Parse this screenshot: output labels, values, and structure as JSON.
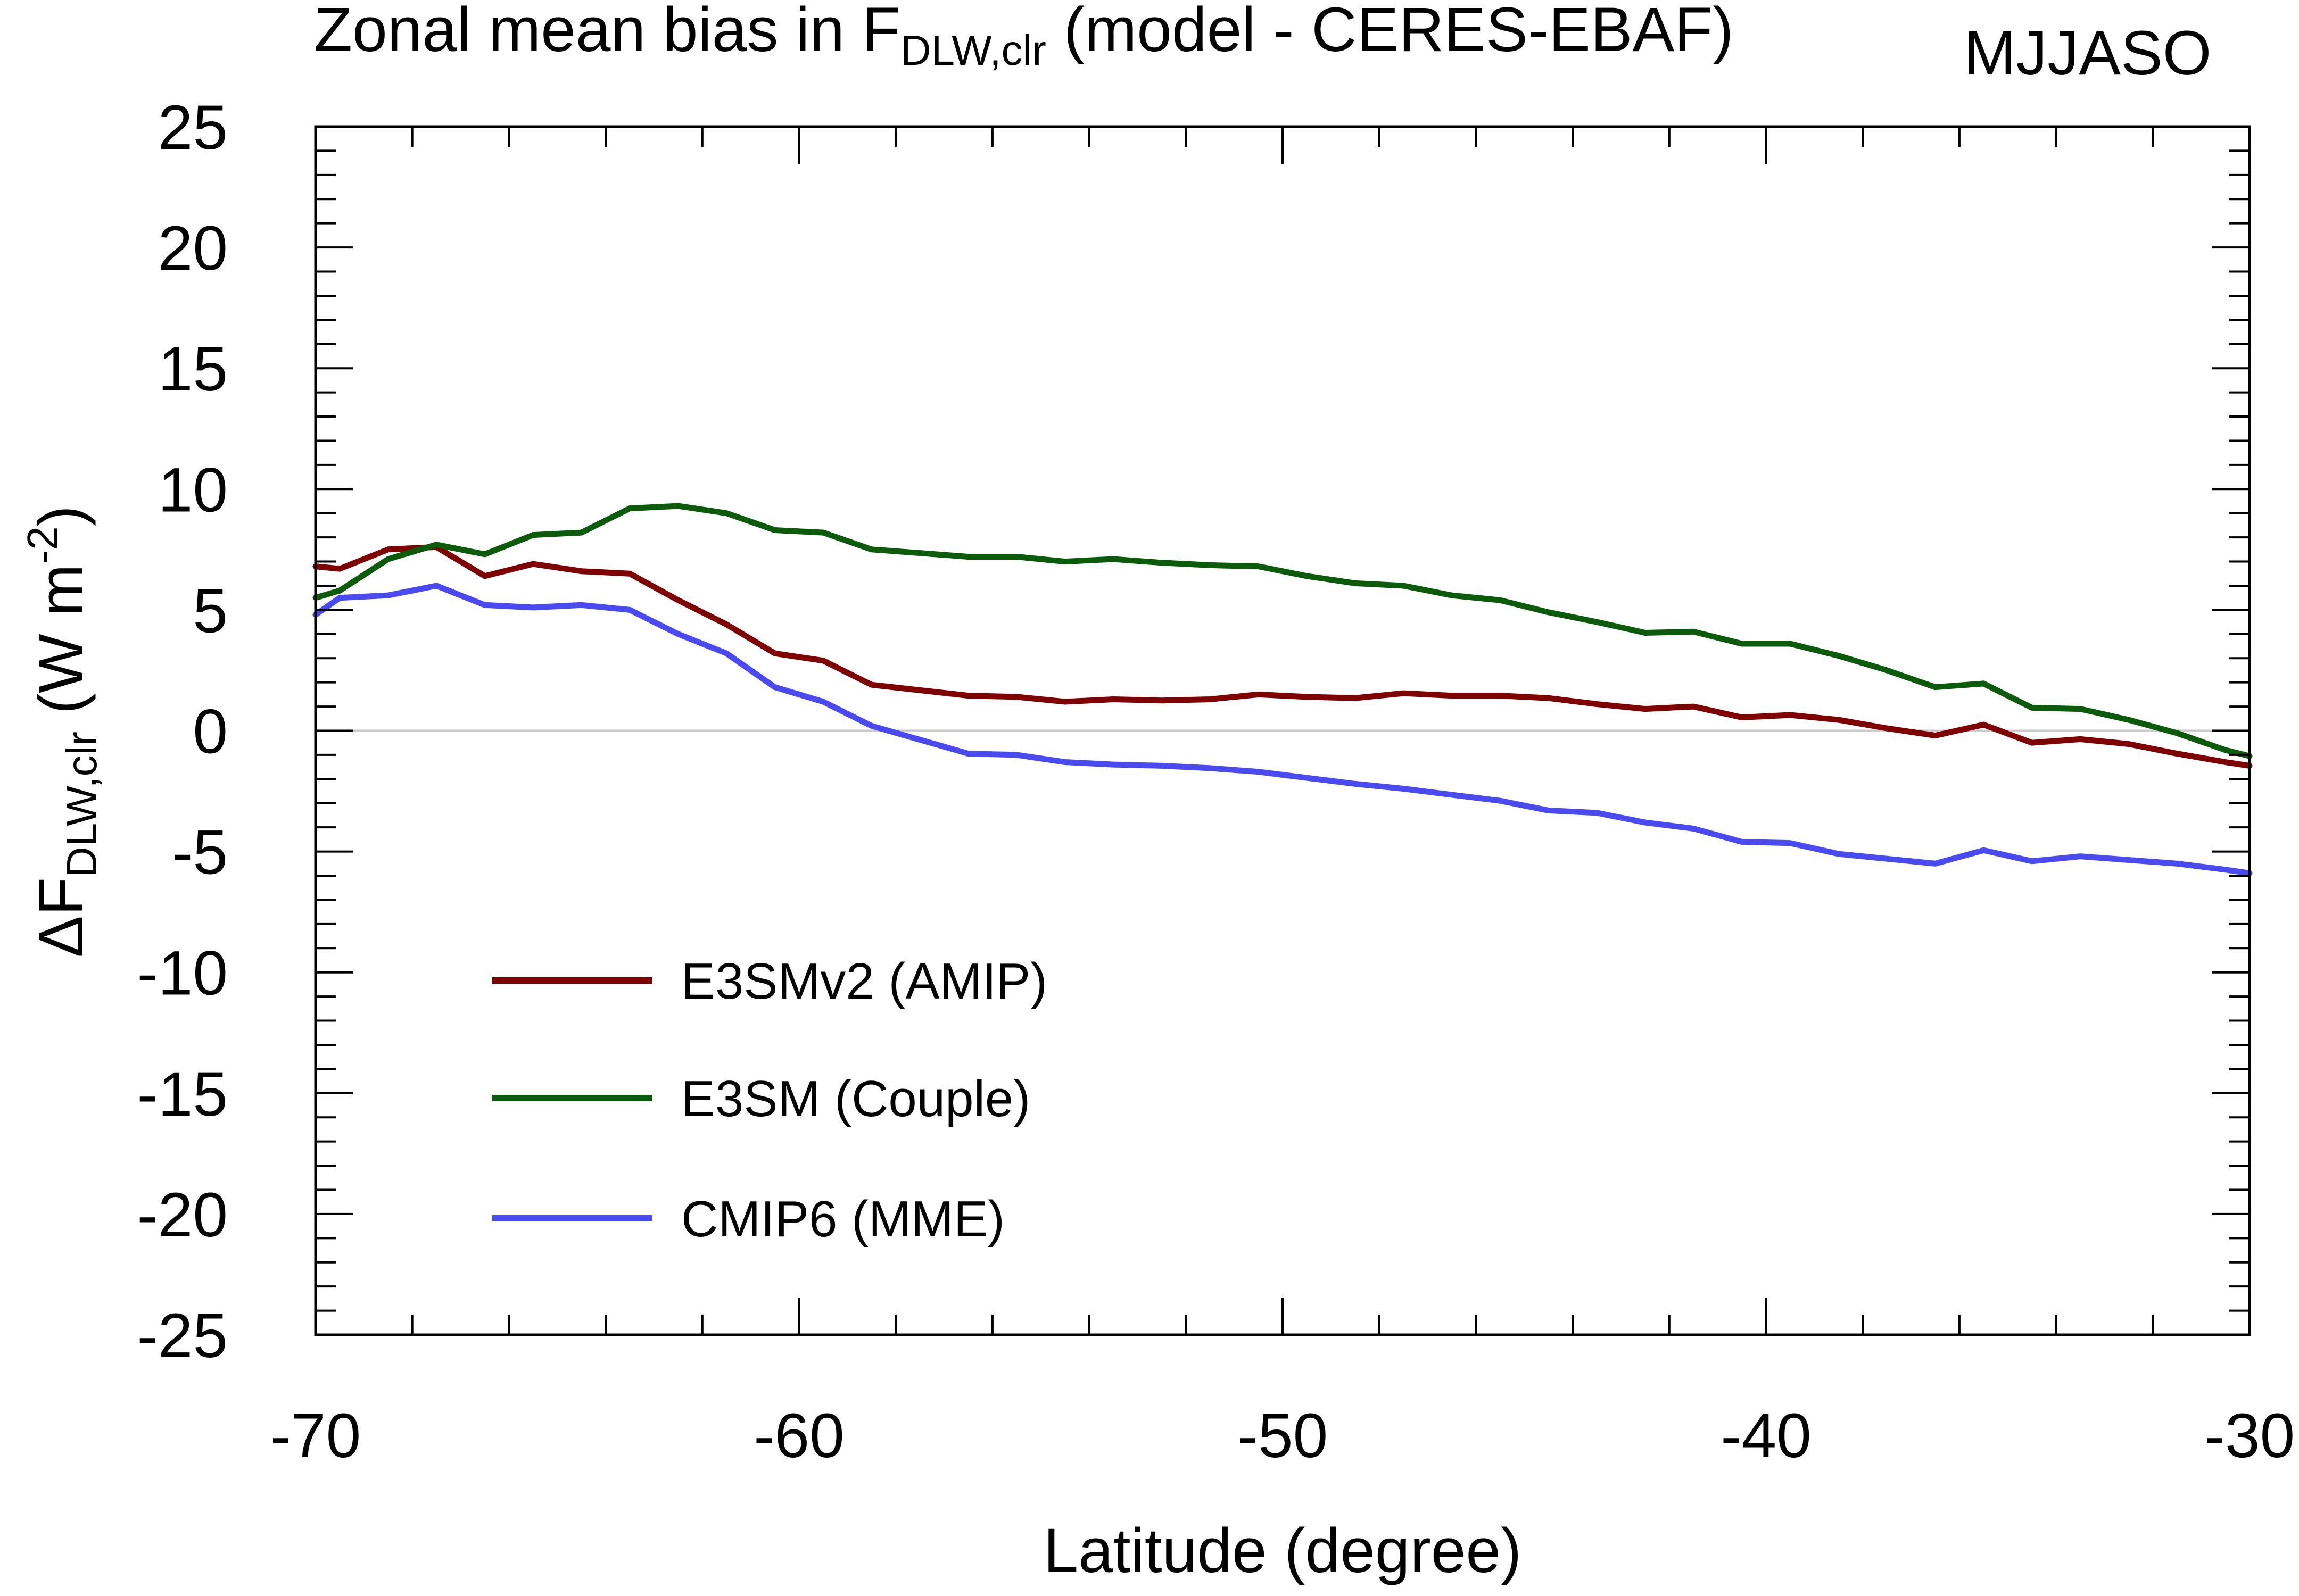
{
  "chart_data": {
    "type": "line",
    "title": {
      "main": "Zonal mean bias in F",
      "main_subscript": "DLW,clr",
      "main_suffix": " (model - CERES-EBAF)",
      "season": "MJJASO"
    },
    "xlabel": "Latitude (degree)",
    "ylabel": {
      "prefix": "ΔF",
      "subscript": "DLW,clr",
      "units_open": " (W m",
      "units_exp": "-2",
      "units_close": ")"
    },
    "xlim": [
      -70,
      -30
    ],
    "ylim": [
      -25,
      25
    ],
    "x_ticks": [
      -70,
      -60,
      -50,
      -40,
      -30
    ],
    "x_tick_labels": [
      "-70",
      "-60",
      "-50",
      "-40",
      "-30"
    ],
    "y_ticks": [
      25,
      20,
      15,
      10,
      5,
      0,
      -5,
      -10,
      -15,
      -20,
      -25
    ],
    "y_tick_labels": [
      "25",
      "20",
      "15",
      "10",
      "5",
      "0",
      "-5",
      "-10",
      "-15",
      "-20",
      "-25"
    ],
    "zero_line": true,
    "legend_position": "lower-left",
    "x": [
      -70,
      -69.5,
      -68.5,
      -67.5,
      -66.5,
      -65.5,
      -64.5,
      -63.5,
      -62.5,
      -61.5,
      -60.5,
      -59.5,
      -58.5,
      -56.5,
      -55.5,
      -54.5,
      -53.5,
      -52.5,
      -51.5,
      -50.5,
      -49.5,
      -48.5,
      -47.5,
      -46.5,
      -45.5,
      -44.5,
      -43.5,
      -42.5,
      -41.5,
      -40.5,
      -39.5,
      -38.5,
      -37.5,
      -36.5,
      -35.5,
      -34.5,
      -33.5,
      -32.5,
      -31.5,
      -30.5,
      -30
    ],
    "series": [
      {
        "name": "E3SMv2 (AMIP)",
        "color": "#800000",
        "values": [
          6.8,
          6.7,
          7.5,
          7.6,
          6.4,
          6.9,
          6.6,
          6.5,
          5.4,
          4.4,
          3.2,
          2.9,
          1.9,
          1.45,
          1.4,
          1.2,
          1.3,
          1.25,
          1.3,
          1.5,
          1.4,
          1.35,
          1.55,
          1.45,
          1.45,
          1.35,
          1.1,
          0.9,
          1.0,
          0.55,
          0.65,
          0.45,
          0.1,
          -0.2,
          0.25,
          -0.5,
          -0.35,
          -0.55,
          -0.95,
          -1.3,
          -1.45
        ]
      },
      {
        "name": "E3SM (Couple)",
        "color": "#0a5c0a",
        "values": [
          5.5,
          5.8,
          7.1,
          7.7,
          7.3,
          8.1,
          8.2,
          9.2,
          9.3,
          9.0,
          8.3,
          8.2,
          7.5,
          7.2,
          7.2,
          7.0,
          7.1,
          6.95,
          6.85,
          6.8,
          6.4,
          6.1,
          6.0,
          5.6,
          5.4,
          4.9,
          4.5,
          4.05,
          4.1,
          3.6,
          3.6,
          3.1,
          2.5,
          1.8,
          1.95,
          0.95,
          0.9,
          0.45,
          -0.1,
          -0.8,
          -1.05
        ]
      },
      {
        "name": "CMIP6 (MME)",
        "color": "#4a4af5",
        "values": [
          4.8,
          5.5,
          5.6,
          6.0,
          5.2,
          5.1,
          5.2,
          5.0,
          4.0,
          3.2,
          1.8,
          1.2,
          0.2,
          -0.95,
          -1.0,
          -1.3,
          -1.4,
          -1.45,
          -1.55,
          -1.7,
          -1.95,
          -2.2,
          -2.4,
          -2.65,
          -2.9,
          -3.3,
          -3.4,
          -3.8,
          -4.05,
          -4.6,
          -4.65,
          -5.1,
          -5.3,
          -5.5,
          -4.95,
          -5.4,
          -5.2,
          -5.35,
          -5.5,
          -5.75,
          -5.9
        ]
      }
    ]
  }
}
